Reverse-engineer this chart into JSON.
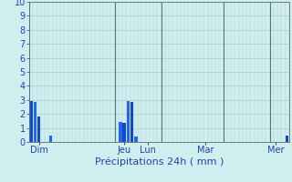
{
  "title": "",
  "xlabel": "Précipitations 24h ( mm )",
  "ylabel": "",
  "ylim": [
    0,
    10
  ],
  "yticks": [
    0,
    1,
    2,
    3,
    4,
    5,
    6,
    7,
    8,
    9,
    10
  ],
  "background_color": "#ceeef0",
  "bar_color_dark": "#1448c8",
  "bar_color_light": "#2266ee",
  "grid_color": "#aacccc",
  "grid_color_day": "#557777",
  "values": [
    2.9,
    2.85,
    1.8,
    0,
    0,
    0.45,
    0,
    0,
    0,
    0,
    0,
    0,
    0,
    0,
    0,
    0,
    0,
    0,
    0,
    0,
    0,
    0,
    0,
    1.4,
    1.35,
    2.9,
    2.85,
    0.4,
    0,
    0,
    0,
    0,
    0,
    0,
    0,
    0,
    0,
    0,
    0,
    0,
    0,
    0,
    0,
    0,
    0,
    0,
    0,
    0,
    0,
    0,
    0,
    0,
    0,
    0,
    0,
    0,
    0,
    0,
    0,
    0,
    0,
    0,
    0,
    0,
    0,
    0,
    0.45
  ],
  "n_bars": 67,
  "day_labels": [
    "Dim",
    "Jeu",
    "Lun",
    "Mar",
    "Mer"
  ],
  "day_tick_positions": [
    2,
    24,
    30,
    45,
    63
  ],
  "day_sep_positions": [
    0,
    22,
    34,
    50,
    62
  ],
  "bar_width": 0.85,
  "label_color": "#2244aa",
  "tick_color": "#2244aa",
  "xlabel_fontsize": 8,
  "ytick_fontsize": 7,
  "xtick_fontsize": 7,
  "spine_color": "#777777"
}
